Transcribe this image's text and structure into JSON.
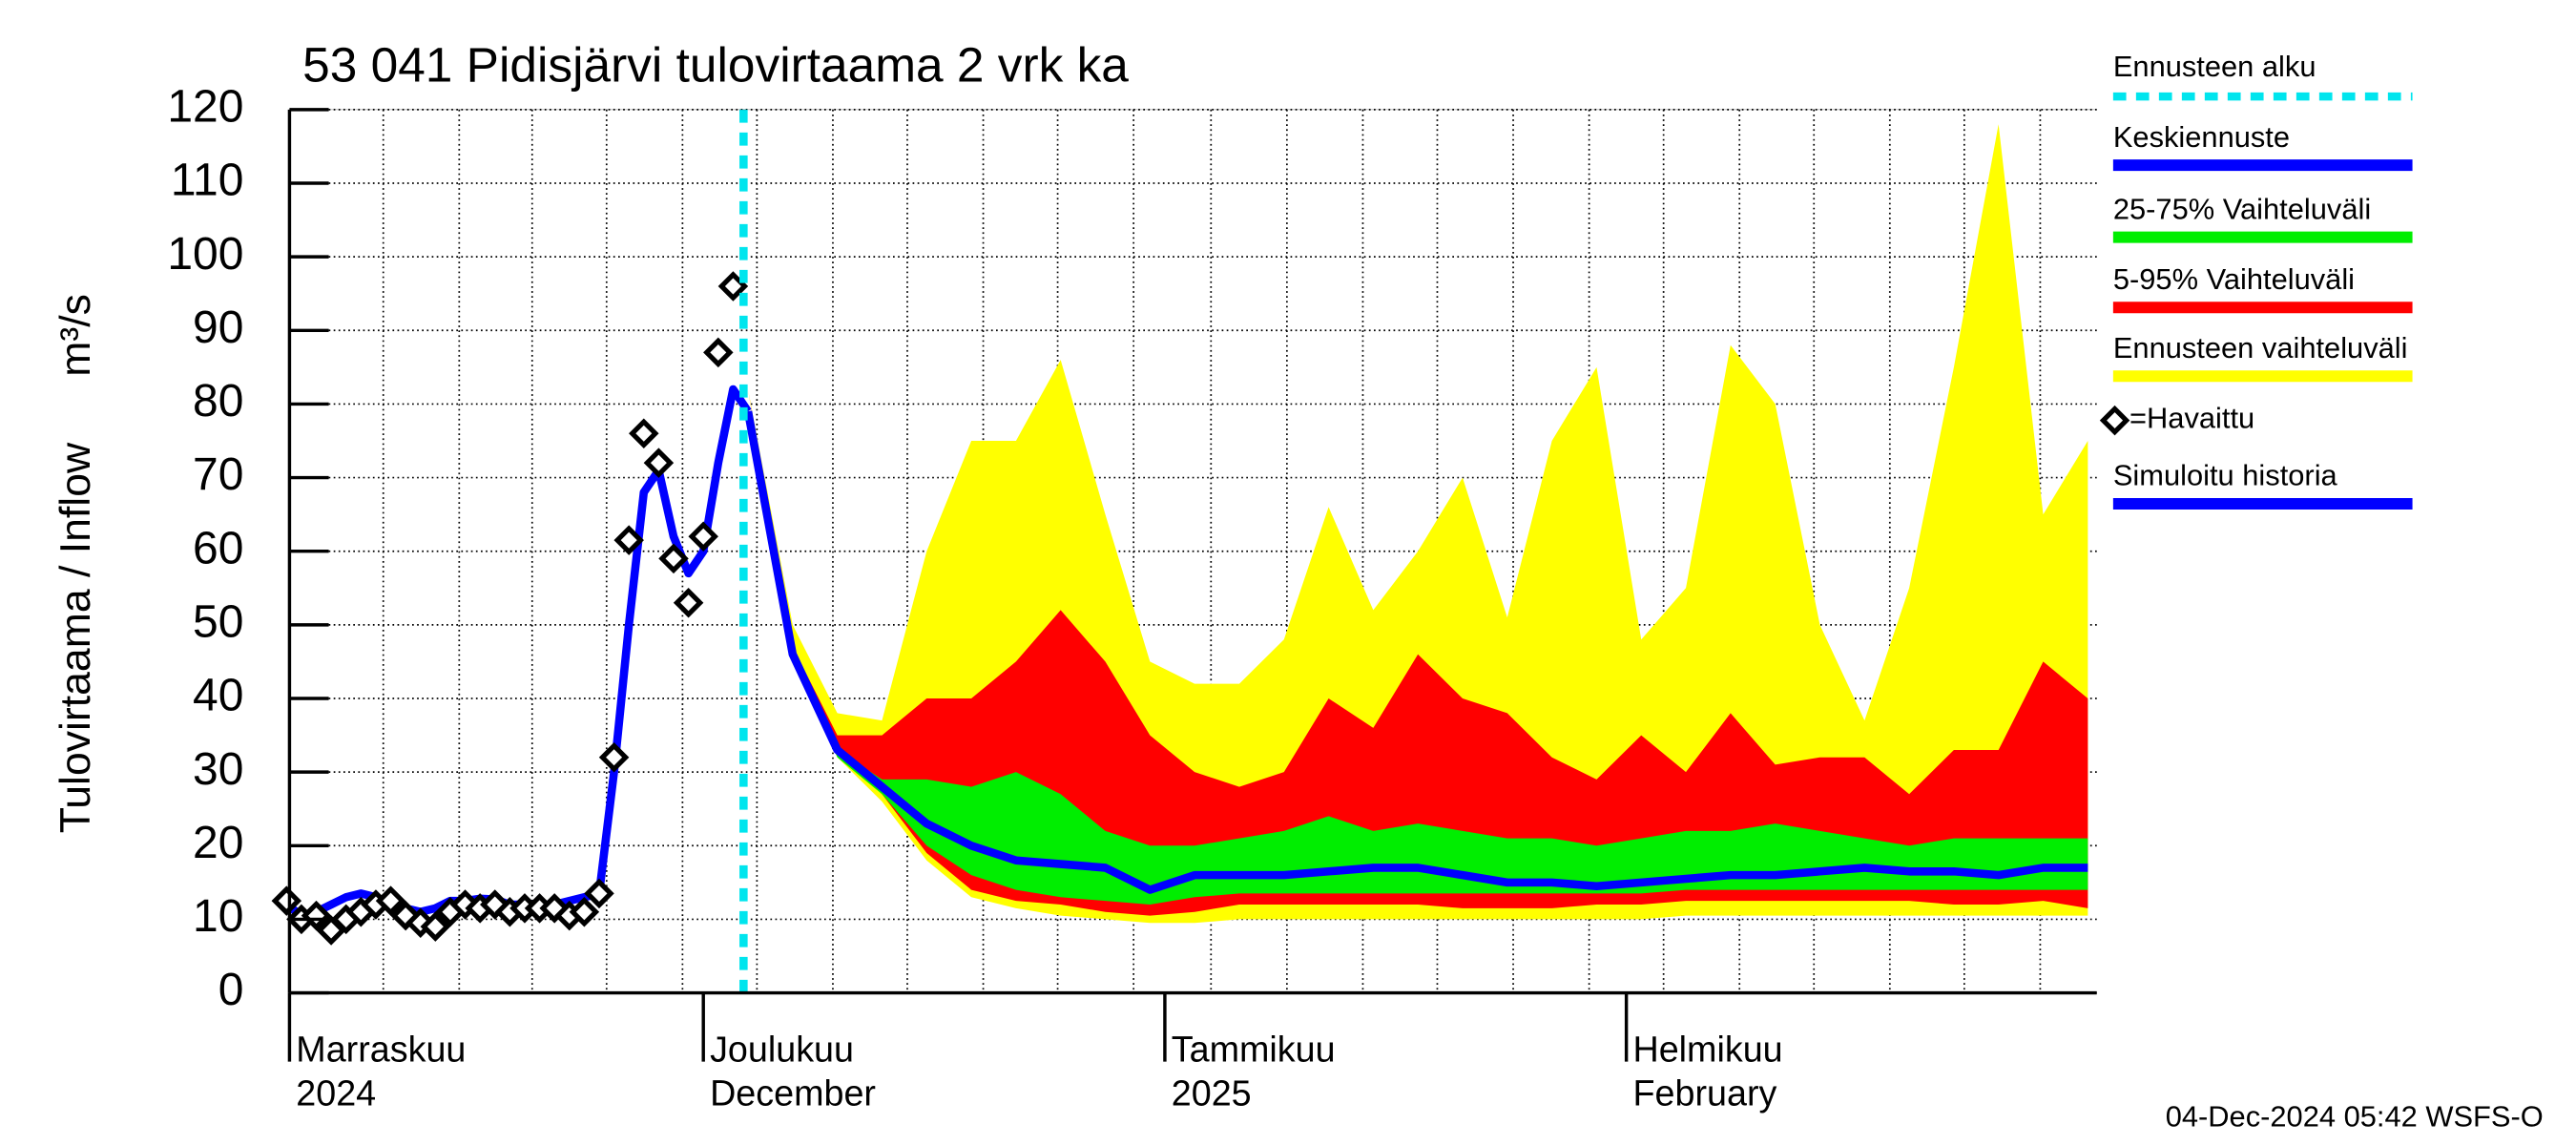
{
  "chart_data": {
    "type": "forecast-band",
    "title": "53 041 Pidisjärvi tulovirtaama 2 vrk ka",
    "y_label": "Tulovirtaama / Inflow",
    "y_unit": "m³/s",
    "footer": "04-Dec-2024 05:42 WSFS-O",
    "xlim": [
      2.2,
      123.6
    ],
    "ylim": [
      0,
      120
    ],
    "yticks": [
      0,
      10,
      20,
      30,
      40,
      50,
      60,
      70,
      80,
      90,
      100,
      110,
      120
    ],
    "xticks": [
      {
        "value": 2.2,
        "label": "Marraskuu"
      },
      {
        "value": 30,
        "label": "Joulukuu"
      },
      {
        "value": 61,
        "label": "Tammikuu"
      },
      {
        "value": 92,
        "label": "Helmikuu"
      }
    ],
    "x_sublabels": [
      {
        "value": 2.2,
        "label": "2024"
      },
      {
        "value": 30,
        "label": "December"
      },
      {
        "value": 61,
        "label": "2025"
      },
      {
        "value": 92,
        "label": "February"
      }
    ],
    "xgrid": [
      8.5,
      13.6,
      18.5,
      23.5,
      28.6,
      33.6,
      38.7,
      43.7,
      48.8,
      53.8,
      58.9,
      64.1,
      69.2,
      74.3,
      79.3,
      84.4,
      89.5,
      94.5,
      99.6,
      104.6,
      109.7,
      114.7,
      119.8
    ],
    "grid": true,
    "forecast_start": {
      "name": "Ennusteen alku",
      "x": 32.7,
      "color": "#00e5ee"
    },
    "series": [
      {
        "name": "Keskiennuste",
        "style": "line",
        "color": "#0000ff",
        "x": [
          33,
          36,
          39,
          42,
          45,
          48,
          51,
          54,
          57,
          60,
          63,
          66,
          69,
          72,
          75,
          78,
          81,
          84,
          87,
          90,
          93,
          96,
          99,
          102,
          105,
          108,
          111,
          114,
          117,
          120,
          123
        ],
        "values": [
          79,
          46,
          33,
          28,
          23,
          20,
          18,
          17.5,
          17,
          14,
          16,
          16,
          16,
          16.5,
          17,
          17,
          16,
          15,
          15,
          14.5,
          15,
          15.5,
          16,
          16,
          16.5,
          17,
          16.5,
          16.5,
          16,
          17,
          17
        ]
      },
      {
        "name": "25-75% Vaihteluväli",
        "style": "band",
        "color": "#00ee00",
        "x": [
          33,
          36,
          39,
          42,
          45,
          48,
          51,
          54,
          57,
          60,
          63,
          66,
          69,
          72,
          75,
          78,
          81,
          84,
          87,
          90,
          93,
          96,
          99,
          102,
          105,
          108,
          111,
          114,
          117,
          120,
          123
        ],
        "values": [
          82,
          46,
          33,
          29,
          29,
          28,
          30,
          27,
          22,
          20,
          20,
          21,
          22,
          24,
          22,
          23,
          22,
          21,
          21,
          20,
          21,
          22,
          22,
          23,
          22,
          21,
          20,
          21,
          21,
          21,
          21
        ],
        "lower": [
          82,
          46,
          32,
          27,
          20,
          16,
          14,
          13,
          12.5,
          12,
          13,
          13.5,
          13.5,
          13.5,
          13.5,
          13.5,
          13.5,
          13.5,
          13.5,
          13.5,
          13.5,
          14,
          14,
          14,
          14,
          14,
          14,
          14,
          14,
          14,
          14
        ]
      },
      {
        "name": "5-95% Vaihteluväli",
        "style": "band",
        "color": "#ff0000",
        "x": [
          33,
          36,
          39,
          42,
          45,
          48,
          51,
          54,
          57,
          60,
          63,
          66,
          69,
          72,
          75,
          78,
          81,
          84,
          87,
          90,
          93,
          96,
          99,
          102,
          105,
          108,
          111,
          114,
          117,
          120,
          123
        ],
        "values": [
          82,
          47,
          35,
          35,
          40,
          40,
          45,
          52,
          45,
          35,
          30,
          28,
          30,
          40,
          36,
          46,
          40,
          38,
          32,
          29,
          35,
          30,
          38,
          31,
          32,
          32,
          27,
          33,
          33,
          45,
          40
        ],
        "lower": [
          82,
          46,
          33,
          27,
          19,
          14,
          12.5,
          12,
          11,
          10.5,
          11,
          12,
          12,
          12,
          12,
          12,
          11.5,
          11.5,
          11.5,
          12,
          12,
          12.5,
          12.5,
          12.5,
          12.5,
          12.5,
          12.5,
          12,
          12,
          12.5,
          11.5
        ]
      },
      {
        "name": "Ennusteen vaihteluväli",
        "style": "band",
        "color": "#ffff00",
        "x": [
          33,
          36,
          39,
          42,
          45,
          48,
          51,
          54,
          57,
          60,
          63,
          66,
          69,
          72,
          75,
          78,
          81,
          84,
          87,
          90,
          93,
          96,
          99,
          102,
          105,
          108,
          111,
          114,
          117,
          120,
          123
        ],
        "values": [
          82,
          50,
          38,
          37,
          60,
          75,
          75,
          86,
          65,
          45,
          42,
          42,
          48,
          66,
          52,
          60,
          70,
          51,
          75,
          85,
          48,
          55,
          88,
          80,
          50,
          37,
          55,
          85,
          118,
          65,
          75
        ],
        "lower": [
          82,
          46,
          32,
          26,
          18,
          13,
          11.5,
          10.5,
          10,
          9.5,
          9.5,
          10,
          10,
          10,
          10,
          10,
          10,
          10,
          10,
          10,
          10,
          10.5,
          10.5,
          10.5,
          10.5,
          10.5,
          10.5,
          10.5,
          10.5,
          10.5,
          10.5
        ]
      },
      {
        "name": "=Havaittu",
        "style": "marker",
        "color": "#000000",
        "x": [
          2,
          3,
          4,
          5,
          6,
          7,
          8,
          9,
          10,
          11,
          12,
          13,
          14,
          15,
          16,
          17,
          18,
          19,
          20,
          21,
          22,
          23,
          24,
          25,
          26,
          27,
          28,
          29,
          30,
          31,
          32
        ],
        "values": [
          12.5,
          10,
          10.5,
          8.5,
          10,
          11,
          12,
          12.5,
          10.5,
          9.5,
          9,
          11,
          12,
          11.5,
          12,
          11,
          11.5,
          11.5,
          11.5,
          10.5,
          11,
          13.5,
          32,
          61.5,
          76,
          72,
          59,
          53,
          62,
          87,
          96
        ]
      },
      {
        "name": "Simuloitu historia",
        "style": "line",
        "color": "#0000ff",
        "x": [
          2,
          3,
          4,
          5,
          6,
          7,
          8,
          9,
          10,
          11,
          12,
          13,
          14,
          15,
          16,
          17,
          18,
          19,
          20,
          21,
          22,
          23,
          24,
          25,
          26,
          27,
          28,
          29,
          30,
          31,
          32,
          33
        ],
        "values": [
          12,
          10.5,
          11,
          12,
          13,
          13.5,
          13,
          12,
          11.5,
          11,
          11.5,
          12.5,
          12.5,
          12.8,
          12.7,
          12,
          12,
          12,
          12,
          12.5,
          13,
          13.5,
          30,
          50,
          68,
          71,
          62,
          57,
          60,
          72,
          82,
          79
        ]
      }
    ]
  }
}
